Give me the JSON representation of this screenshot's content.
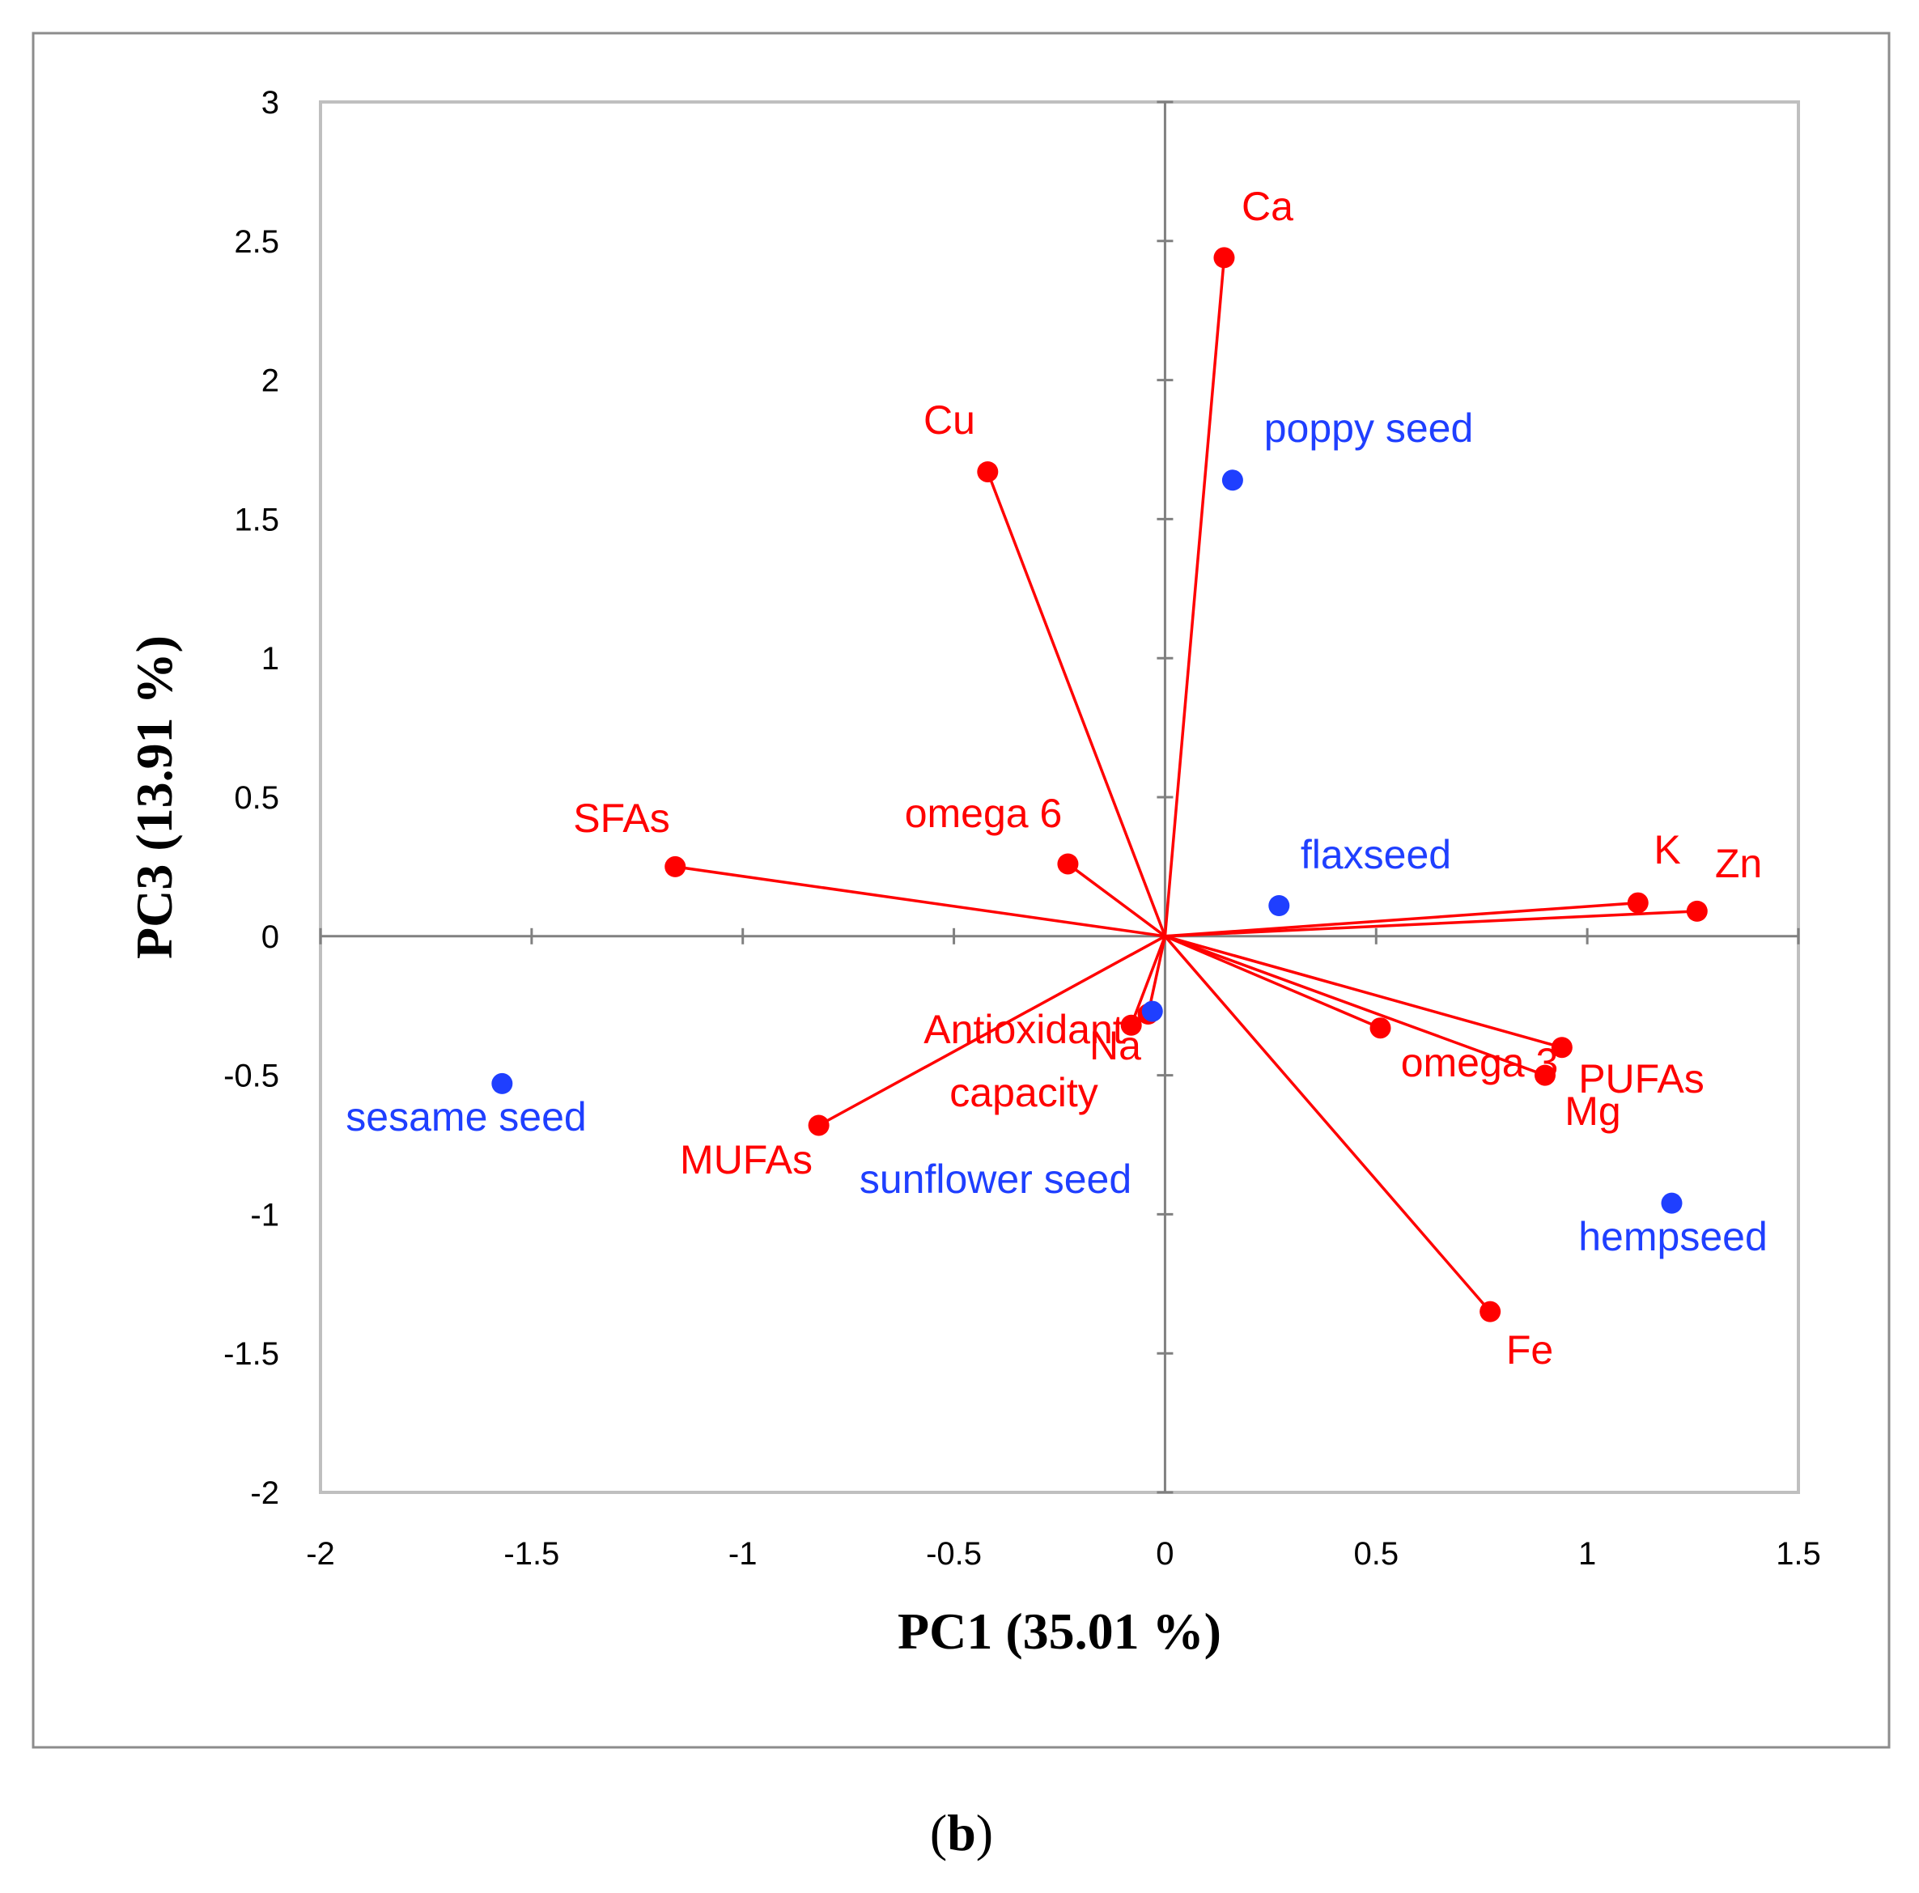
{
  "chart_data": {
    "type": "scatter",
    "subtype": "biplot",
    "xlabel": "PC1 (35.01 %)",
    "ylabel": "PC3 (13.91 %)",
    "xlim": [
      -2,
      1.5
    ],
    "ylim": [
      -2,
      3
    ],
    "x_ticks": [
      "-2",
      "-1.5",
      "-1",
      "-0.5",
      "0",
      "0.5",
      "1",
      "1.5"
    ],
    "y_ticks": [
      "-2",
      "-1.5",
      "-1",
      "-0.5",
      "0",
      "0.5",
      "1",
      "1.5",
      "2",
      "2.5",
      "3"
    ],
    "panel_label": {
      "open": "(",
      "letter": "b",
      "close": ")"
    },
    "colors": {
      "variables": "#ff0000",
      "samples": "#1f3fff",
      "frame": "#bfbfbf",
      "axis": "#808080"
    },
    "series": [
      {
        "name": "variables",
        "kind": "loading-vectors",
        "points": [
          {
            "label": "Ca",
            "x": 0.14,
            "y": 2.44
          },
          {
            "label": "Cu",
            "x": -0.42,
            "y": 1.67
          },
          {
            "label": "omega 6",
            "x": -0.23,
            "y": 0.26
          },
          {
            "label": "SFAs",
            "x": -1.16,
            "y": 0.25
          },
          {
            "label": "K",
            "x": 1.12,
            "y": 0.12
          },
          {
            "label": "Zn",
            "x": 1.26,
            "y": 0.09
          },
          {
            "label": "Antioxidant capacity",
            "x": -0.08,
            "y": -0.32
          },
          {
            "label": "Na",
            "x": -0.04,
            "y": -0.28
          },
          {
            "label": "omega 3",
            "x": 0.51,
            "y": -0.33
          },
          {
            "label": "PUFAs",
            "x": 0.94,
            "y": -0.4
          },
          {
            "label": "Mg",
            "x": 0.9,
            "y": -0.5
          },
          {
            "label": "MUFAs",
            "x": -0.82,
            "y": -0.68
          },
          {
            "label": "Fe",
            "x": 0.77,
            "y": -1.35
          }
        ]
      },
      {
        "name": "samples",
        "kind": "scores",
        "points": [
          {
            "label": "poppy seed",
            "x": 0.16,
            "y": 1.64
          },
          {
            "label": "flaxseed",
            "x": 0.27,
            "y": 0.11
          },
          {
            "label": "sunflower seed",
            "x": -0.03,
            "y": -0.27
          },
          {
            "label": "sesame seed",
            "x": -1.57,
            "y": -0.53
          },
          {
            "label": "hempseed",
            "x": 1.2,
            "y": -0.96
          }
        ]
      }
    ]
  }
}
